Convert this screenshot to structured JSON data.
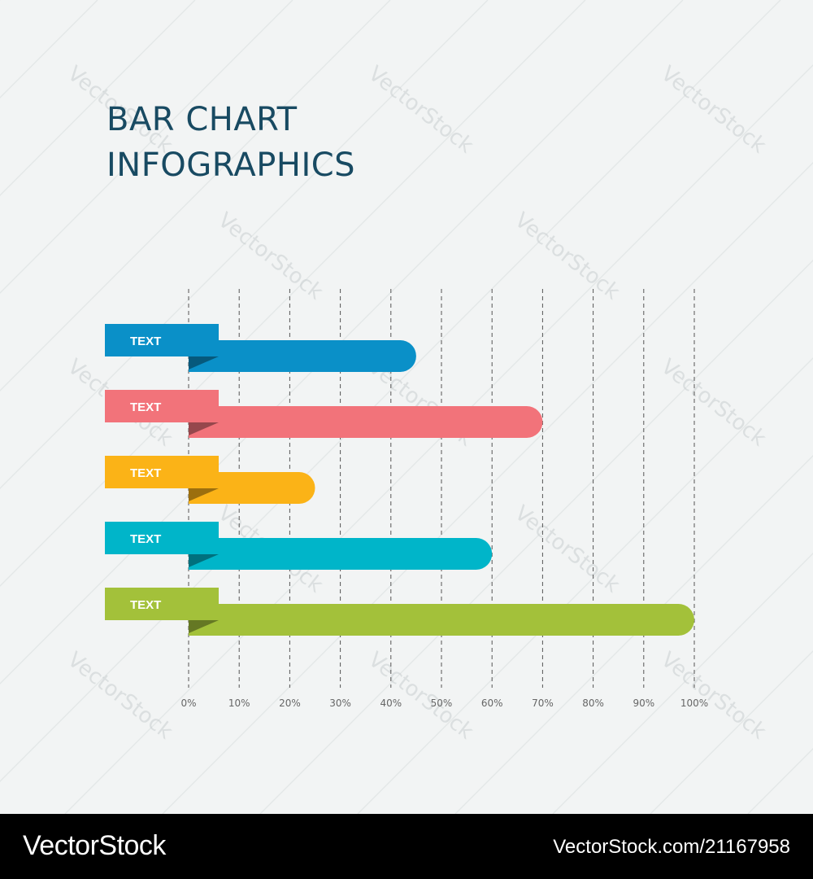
{
  "title": {
    "line1": "BAR CHART",
    "line2": "INFOGRAPHICS"
  },
  "chart_data": {
    "type": "bar",
    "orientation": "horizontal",
    "categories": [
      "TEXT",
      "TEXT",
      "TEXT",
      "TEXT",
      "TEXT"
    ],
    "values": [
      45,
      70,
      25,
      60,
      100
    ],
    "colors": [
      "#0a90c8",
      "#f2737a",
      "#fbb317",
      "#00b5c9",
      "#a3c13a"
    ],
    "xticks": [
      "0%",
      "10%",
      "20%",
      "30%",
      "40%",
      "50%",
      "60%",
      "70%",
      "80%",
      "90%",
      "100%"
    ],
    "xlim": [
      0,
      100
    ],
    "grid": "vertical dashed"
  },
  "watermark": "VectorStock",
  "footer": {
    "brand": "VectorStock",
    "id": "VectorStock.com/21167958"
  }
}
